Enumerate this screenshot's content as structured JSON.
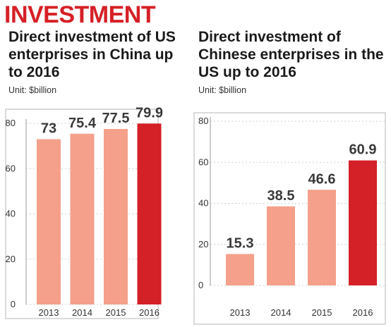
{
  "header": {
    "title": "INVESTMENT"
  },
  "colors": {
    "header": "#d62027",
    "bar": "#f4a08a",
    "highlight": "#d42027",
    "grid": "#cfcfcf",
    "text": "#333333"
  },
  "chart_data": [
    {
      "type": "bar",
      "title": "Direct investment of US enterprises in China up to 2016",
      "title_lines": [
        "Direct investment of US",
        "enterprises in China up",
        "to 2016"
      ],
      "unit": "Unit: $billion",
      "categories": [
        "2013",
        "2014",
        "2015",
        "2016"
      ],
      "values": [
        73,
        75.4,
        77.5,
        79.9
      ],
      "value_labels": [
        "73",
        "75.4",
        "77.5",
        "79.9"
      ],
      "highlight_index": 3,
      "ylim": [
        0,
        80
      ],
      "yticks": [
        "0",
        "20",
        "40",
        "60",
        "80"
      ],
      "grid": true,
      "xlabel": "",
      "ylabel": ""
    },
    {
      "type": "bar",
      "title": "Direct investment of Chinese enterprises in the US up to 2016",
      "title_lines": [
        "Direct investment of",
        "Chinese enterprises in the",
        "US up to 2016"
      ],
      "unit": "Unit: $billion",
      "categories": [
        "2013",
        "2014",
        "2015",
        "2016"
      ],
      "values": [
        15.3,
        38.5,
        46.6,
        60.9
      ],
      "value_labels": [
        "15.3",
        "38.5",
        "46.6",
        "60.9"
      ],
      "highlight_index": 3,
      "ylim": [
        0,
        80
      ],
      "yticks": [
        "0",
        "20",
        "40",
        "60",
        "80"
      ],
      "grid": true,
      "xlabel": "",
      "ylabel": ""
    }
  ]
}
